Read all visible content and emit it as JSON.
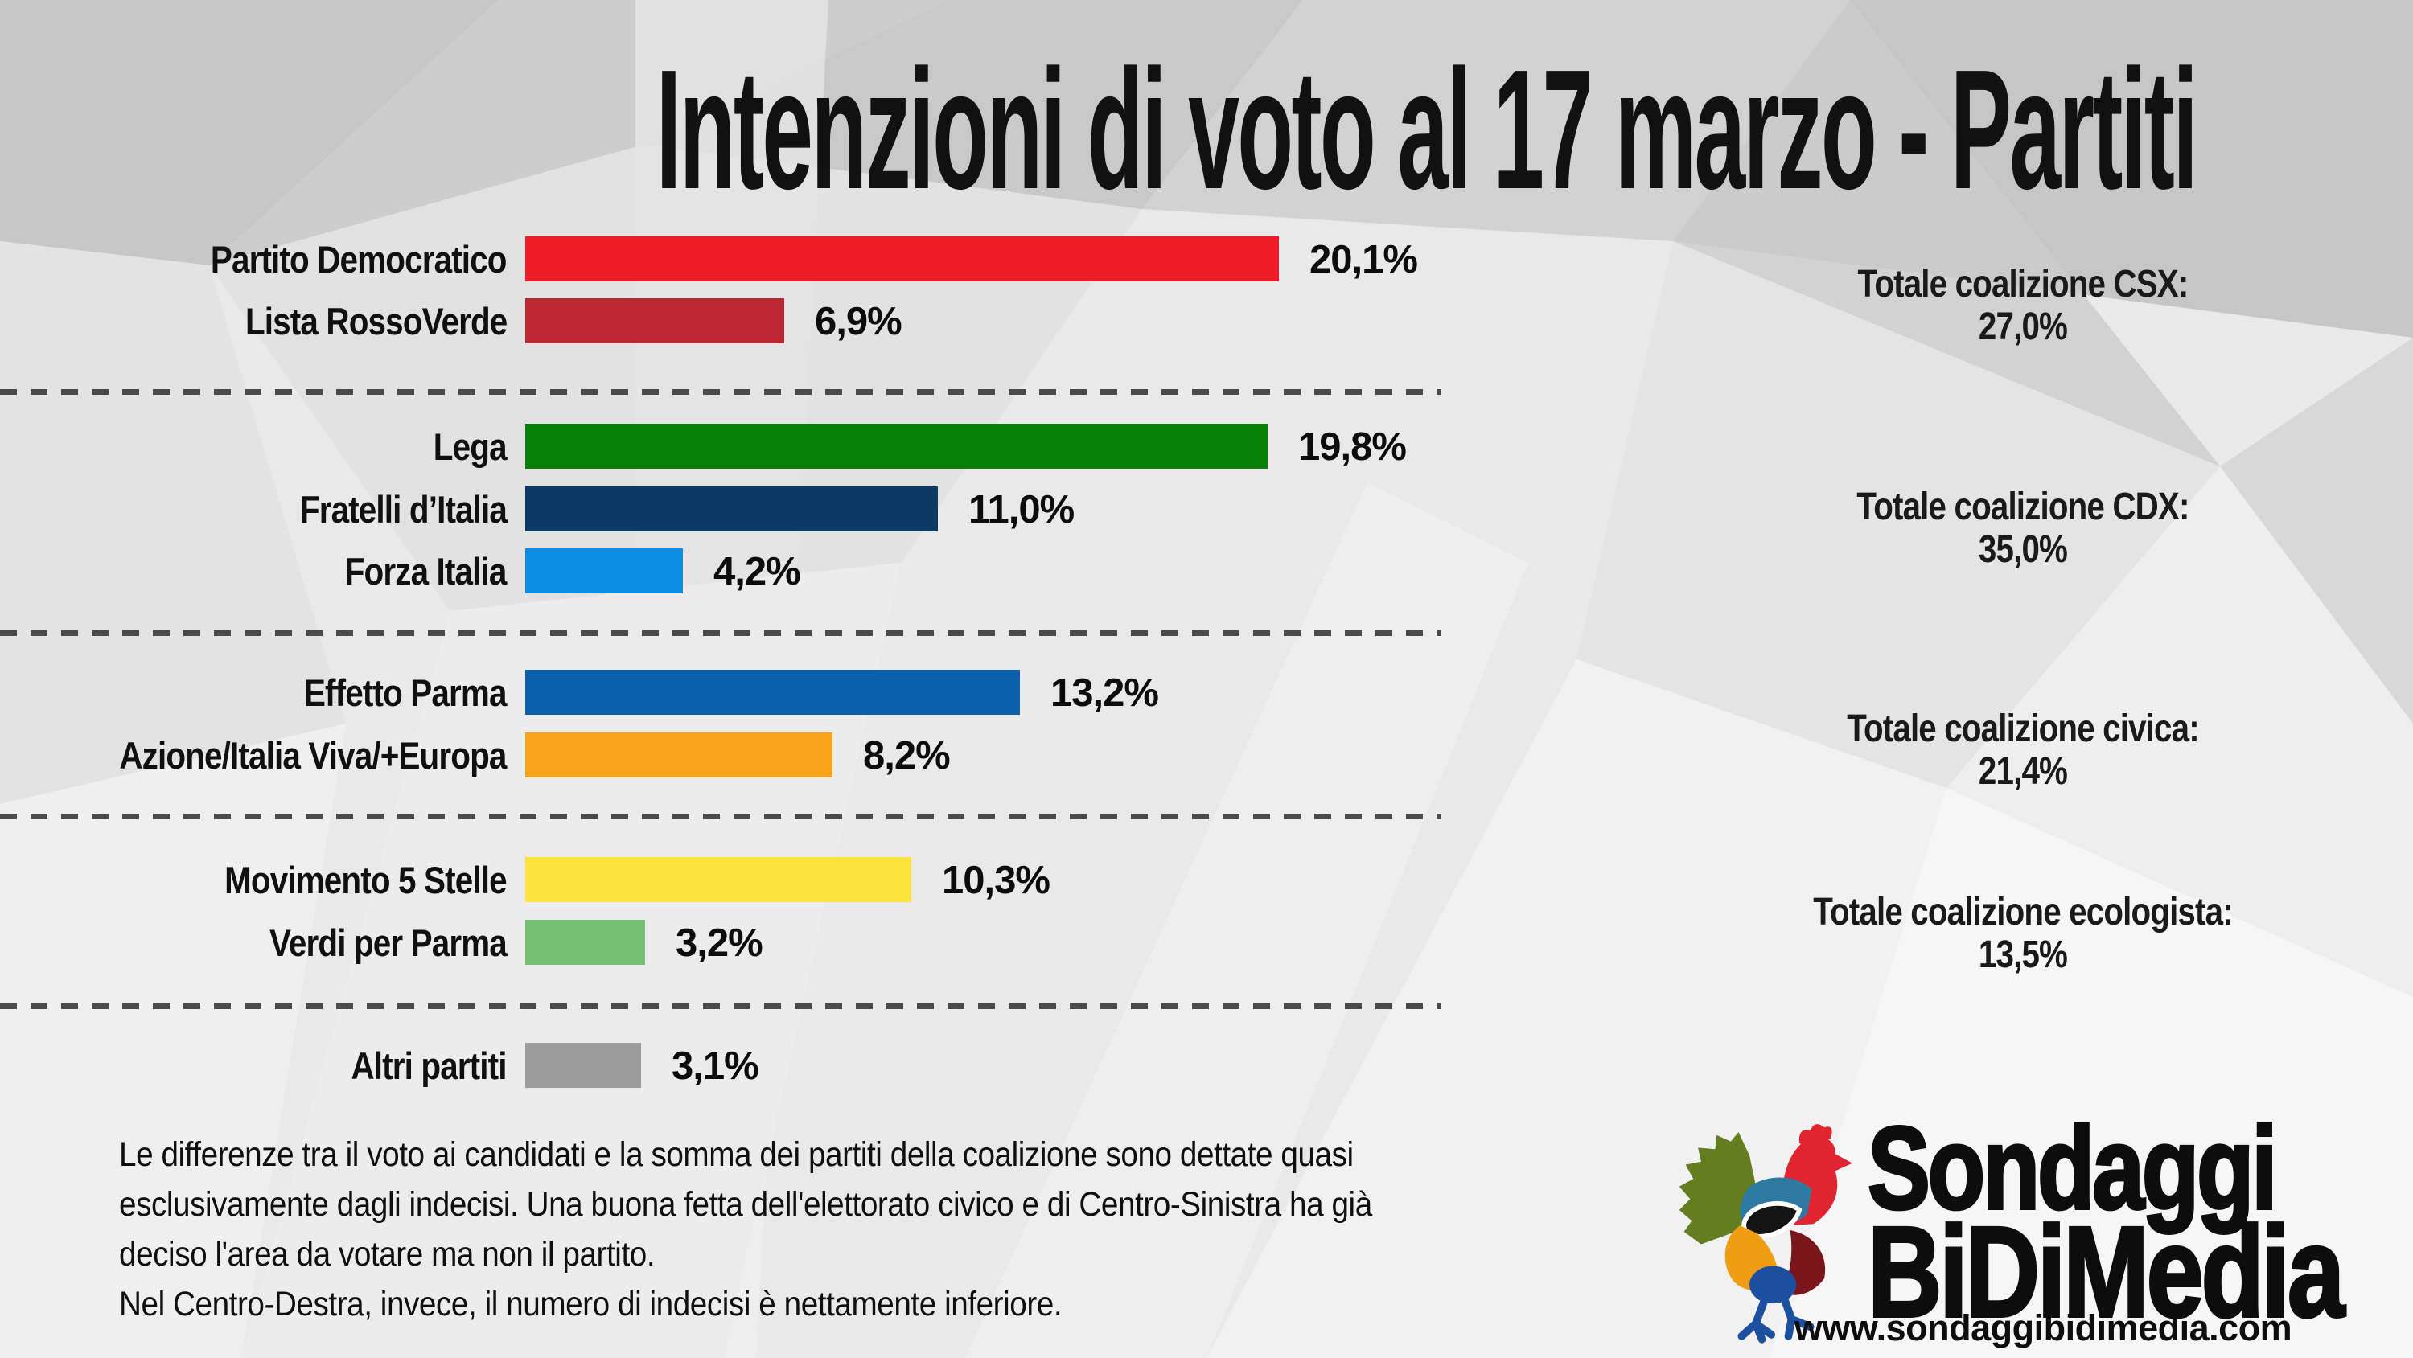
{
  "chart_data": {
    "type": "bar",
    "orientation": "horizontal",
    "title": "Intenzioni di voto al 17 marzo - Partiti",
    "value_suffix": "%",
    "xlim": [
      0,
      21.5
    ],
    "grid": false,
    "parties": [
      {
        "name": "Partito Democratico",
        "value": 20.1,
        "display": "20,1%",
        "color": "#ed1c26",
        "group": 0
      },
      {
        "name": "Lista RossoVerde",
        "value": 6.9,
        "display": "6,9%",
        "color": "#bd2633",
        "group": 0
      },
      {
        "name": "Lega",
        "value": 19.8,
        "display": "19,8%",
        "color": "#078007",
        "group": 1
      },
      {
        "name": "Fratelli d’Italia",
        "value": 11.0,
        "display": "11,0%",
        "color": "#0c3a64",
        "group": 1
      },
      {
        "name": "Forza Italia",
        "value": 4.2,
        "display": "4,2%",
        "color": "#0d8de3",
        "group": 1
      },
      {
        "name": "Effetto Parma",
        "value": 13.2,
        "display": "13,2%",
        "color": "#0c5fab",
        "group": 2
      },
      {
        "name": "Azione/Italia Viva/+Europa",
        "value": 8.2,
        "display": "8,2%",
        "color": "#f7a41b",
        "group": 2
      },
      {
        "name": "Movimento 5 Stelle",
        "value": 10.3,
        "display": "10,3%",
        "color": "#fee23e",
        "group": 3
      },
      {
        "name": "Verdi per Parma",
        "value": 3.2,
        "display": "3,2%",
        "color": "#74bf72",
        "group": 3
      },
      {
        "name": "Altri partiti",
        "value": 3.1,
        "display": "3,1%",
        "color": "#9b9b9b",
        "group": 4
      }
    ],
    "coalition_totals": [
      {
        "label": "Totale coalizione CSX:",
        "value": "27,0%"
      },
      {
        "label": "Totale coalizione CDX:",
        "value": "35,0%"
      },
      {
        "label": "Totale coalizione civica:",
        "value": "21,4%"
      },
      {
        "label": "Totale coalizione ecologista:",
        "value": "13,5%"
      }
    ]
  },
  "notes": {
    "lines": [
      "Le differenze tra il voto ai candidati e la somma dei partiti della coalizione sono dettate quasi",
      "esclusivamente dagli indecisi. Una buona fetta dell'elettorato civico e di Centro-Sinistra ha già",
      "deciso l'area da votare ma non il partito.",
      "Nel Centro-Destra, invece, il numero di indecisi è nettamente inferiore."
    ]
  },
  "logo": {
    "line1": "Sondaggi",
    "line2": "BiDiMedia",
    "url": "www.sondaggibidimedia.com",
    "rooster_colors": {
      "tail": "#637d1f",
      "head": "#e02531",
      "body": "#2e7aa1",
      "wing": "#141414",
      "belly": "#ef9d13",
      "rear": "#7a161b",
      "legs": "#1c4f9e"
    }
  }
}
